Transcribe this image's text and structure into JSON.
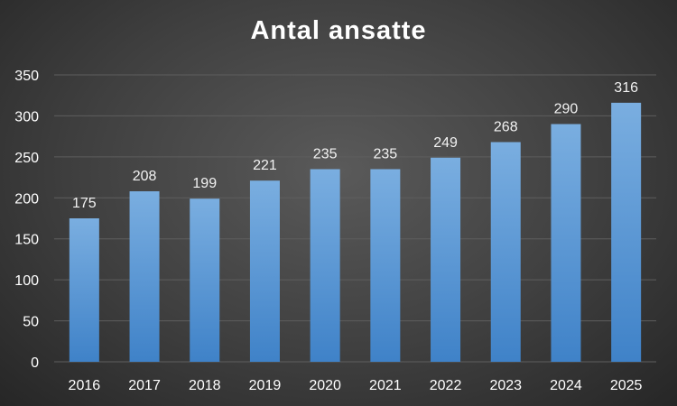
{
  "chart_data": {
    "type": "bar",
    "title": "Antal ansatte",
    "categories": [
      "2016",
      "2017",
      "2018",
      "2019",
      "2020",
      "2021",
      "2022",
      "2023",
      "2024",
      "2025"
    ],
    "series": [
      {
        "values": [
          175,
          208,
          199,
          221,
          235,
          235,
          249,
          268,
          290,
          316
        ]
      }
    ],
    "data_labels": [
      "175",
      "208",
      "199",
      "221",
      "235",
      "235",
      "249",
      "268",
      "290",
      "316"
    ],
    "yticks": [
      0,
      50,
      100,
      150,
      200,
      250,
      300,
      350
    ],
    "ylim": [
      0,
      350
    ],
    "grid": true,
    "legend": "none",
    "colors": {
      "bar_top": "#7aaee0",
      "bar_bottom": "#3f82c8",
      "grid": "#5e5e5e",
      "text": "#ffffff"
    }
  }
}
